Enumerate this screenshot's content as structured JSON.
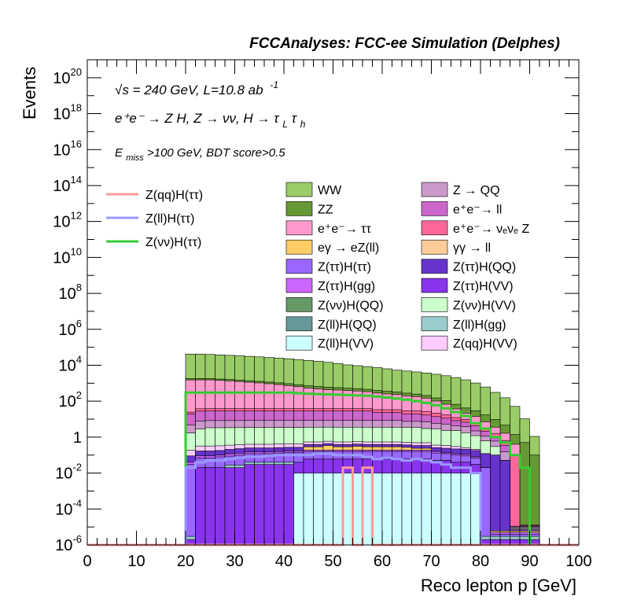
{
  "header": {
    "title": "FCCAnalyses: FCC-ee Simulation (Delphes)"
  },
  "annotations": {
    "line1": "√s = 240 GeV, L=10.8 ab",
    "line1_sup": "-1",
    "line2": "e⁺e⁻ → Z H, Z → νν, H → τ",
    "line2_sub1": "L",
    "line2_mid": "τ",
    "line2_sub2": "h",
    "line3_prefix": "E",
    "line3_sub": "miss",
    "line3_rest": ">100 GeV, BDT score>0.5"
  },
  "chart_data": {
    "type": "area",
    "stacked": true,
    "xlabel": "Reco lepton p [GeV]",
    "ylabel": "Events",
    "xlim": [
      0,
      100
    ],
    "ylim": [
      1e-06,
      1e+21
    ],
    "log_y": true,
    "grid": false,
    "x_ticks": [
      "0",
      "10",
      "20",
      "30",
      "40",
      "50",
      "60",
      "70",
      "80",
      "90",
      "100"
    ],
    "y_ticks": [
      {
        "base": "10",
        "exp": "20"
      },
      {
        "base": "10",
        "exp": "18"
      },
      {
        "base": "10",
        "exp": "16"
      },
      {
        "base": "10",
        "exp": "14"
      },
      {
        "base": "10",
        "exp": "12"
      },
      {
        "base": "10",
        "exp": "10"
      },
      {
        "base": "10",
        "exp": "8"
      },
      {
        "base": "10",
        "exp": "6"
      },
      {
        "base": "10",
        "exp": "4"
      },
      {
        "base": "10",
        "exp": "2"
      },
      {
        "base": "1",
        "exp": ""
      },
      {
        "base": "10",
        "exp": "-2"
      },
      {
        "base": "10",
        "exp": "-4"
      },
      {
        "base": "10",
        "exp": "-6"
      }
    ],
    "bin_width": 2,
    "stack_bins_x": [
      20,
      22,
      24,
      26,
      28,
      30,
      32,
      34,
      36,
      38,
      40,
      42,
      44,
      46,
      48,
      50,
      52,
      54,
      56,
      58,
      60,
      62,
      64,
      66,
      68,
      70,
      72,
      74,
      76,
      78,
      80,
      82,
      84,
      86,
      88,
      90
    ],
    "stack_layers": [
      {
        "name": "Z(ll)H(VV)",
        "color": "#ccffff",
        "values": [
          1e-06,
          1e-06,
          1e-06,
          1e-06,
          1e-06,
          1e-06,
          1e-06,
          1e-06,
          1e-06,
          1e-06,
          1e-06,
          0.01,
          0.01,
          0.01,
          0.01,
          0.01,
          0.01,
          0.01,
          0.01,
          0.01,
          0.01,
          0.01,
          0.01,
          0.01,
          0.01,
          0.01,
          0.01,
          0.01,
          0.01,
          0.01,
          1e-06,
          1e-06,
          1e-06,
          1e-06,
          1e-06,
          1e-06
        ]
      },
      {
        "name": "Z(ττ)H(VV)",
        "color": "#8833ee",
        "values": [
          1e-06,
          0.02,
          0.02,
          0.02,
          0.02,
          0.02,
          0.03,
          0.03,
          0.03,
          0.03,
          0.03,
          0.03,
          0.05,
          0.05,
          0.05,
          0.05,
          0.05,
          0.05,
          0.05,
          0.05,
          0.05,
          0.05,
          0.05,
          0.05,
          0.05,
          0.04,
          0.04,
          0.03,
          0.03,
          0.02,
          1e-06,
          1e-06,
          1e-06,
          1e-06,
          1e-06,
          1e-06
        ]
      },
      {
        "name": "Z(ll)H(gg)",
        "color": "#99cccc",
        "values": [
          1e-06,
          1e-06,
          1e-06,
          1e-06,
          0.008,
          0.008,
          0.01,
          0.01,
          0.01,
          0.01,
          0.01,
          1e-06,
          1e-06,
          1e-06,
          1e-06,
          1e-06,
          1e-06,
          1e-06,
          1e-06,
          1e-06,
          1e-06,
          1e-06,
          1e-06,
          1e-06,
          1e-06,
          1e-06,
          1e-06,
          1e-06,
          1e-06,
          1e-06,
          1e-06,
          1e-06,
          1e-06,
          1e-06,
          1e-06,
          1e-06
        ]
      },
      {
        "name": "Z(ττ)H(ττ)",
        "color": "#9966ff",
        "values": [
          0.03,
          0.05,
          0.05,
          0.06,
          0.06,
          0.07,
          0.08,
          0.08,
          0.08,
          0.09,
          0.1,
          0.1,
          0.1,
          0.1,
          0.1,
          0.1,
          0.1,
          0.1,
          0.1,
          0.1,
          0.1,
          0.1,
          0.1,
          0.1,
          0.1,
          0.08,
          0.07,
          0.06,
          0.05,
          0.04,
          0.02,
          1e-06,
          1e-06,
          1e-06,
          1e-06,
          1e-06
        ]
      },
      {
        "name": "Z(ττ)H(gg)",
        "color": "#cc66ff",
        "values": [
          0.01,
          0.02,
          0.02,
          0.02,
          0.03,
          0.03,
          0.03,
          0.03,
          0.03,
          0.03,
          0.03,
          0.03,
          0.03,
          0.03,
          0.03,
          0.03,
          0.03,
          0.03,
          0.03,
          0.03,
          0.03,
          0.03,
          0.03,
          0.03,
          0.03,
          0.03,
          0.02,
          0.02,
          0.02,
          0.01,
          1e-06,
          1e-06,
          1e-06,
          1e-06,
          1e-06,
          1e-06
        ]
      },
      {
        "name": "eγ → eZ(ll)",
        "color": "#ffcc66",
        "values": [
          1e-06,
          1e-06,
          1e-06,
          1e-06,
          1e-06,
          1e-06,
          1e-06,
          1e-06,
          1e-06,
          1e-06,
          1e-06,
          1e-06,
          0.1,
          0.1,
          0.15,
          0.1,
          0.1,
          0.12,
          0.1,
          0.1,
          0.1,
          0.1,
          0.08,
          0.05,
          0.05,
          1e-06,
          1e-06,
          1e-06,
          1e-06,
          1e-06,
          1e-06,
          1e-06,
          1e-06,
          1e-06,
          1e-06,
          1e-06
        ]
      },
      {
        "name": "Z(ττ)H(QQ)",
        "color": "#6633cc",
        "values": [
          0.05,
          0.08,
          0.08,
          0.08,
          0.09,
          0.1,
          0.1,
          0.1,
          0.1,
          0.1,
          0.1,
          0.1,
          0.1,
          0.1,
          0.1,
          0.1,
          0.1,
          0.1,
          0.1,
          0.1,
          0.1,
          0.1,
          0.1,
          0.1,
          0.1,
          0.1,
          0.1,
          0.1,
          0.1,
          0.1,
          0.1,
          0.1,
          0.05,
          1e-06,
          1e-06,
          1e-06
        ]
      },
      {
        "name": "Z(qq)H(VV)",
        "color": "#ffccff",
        "values": [
          0.1,
          0.15,
          0.15,
          0.15,
          0.15,
          0.15,
          0.15,
          0.15,
          0.15,
          0.15,
          0.15,
          0.15,
          0.15,
          0.15,
          0.15,
          0.15,
          0.15,
          0.15,
          0.15,
          0.15,
          0.15,
          0.15,
          0.15,
          0.15,
          0.15,
          0.1,
          0.1,
          0.08,
          0.05,
          0.03,
          1e-06,
          1e-06,
          1e-06,
          1e-06,
          1e-06,
          1e-06
        ]
      },
      {
        "name": "Z(νν)H(VV)",
        "color": "#ccffcc",
        "values": [
          1.5,
          2.5,
          3,
          3,
          3,
          3,
          3,
          3,
          3,
          3,
          3,
          3,
          3,
          3,
          3,
          3,
          3,
          3,
          3,
          3,
          3,
          3,
          3,
          3,
          2.5,
          2.5,
          2,
          2,
          1.5,
          1,
          0.5,
          0.2,
          1e-06,
          1e-06,
          1e-06,
          1e-06
        ]
      },
      {
        "name": "Z → QQ",
        "color": "#cc99cc",
        "values": [
          3,
          5,
          5,
          5,
          5,
          5,
          5,
          5,
          5,
          5,
          5,
          5,
          5,
          5,
          5,
          5,
          5,
          5,
          5,
          5,
          5,
          5,
          4,
          4,
          4,
          3,
          3,
          2,
          2,
          1,
          0.5,
          0.3,
          0.1,
          1e-06,
          1e-06,
          1e-06
        ]
      },
      {
        "name": "e⁺e⁻→ ll",
        "color": "#cc66cc",
        "values": [
          15,
          20,
          20,
          20,
          20,
          20,
          20,
          20,
          20,
          20,
          20,
          20,
          20,
          20,
          20,
          20,
          20,
          20,
          20,
          15,
          15,
          15,
          12,
          12,
          10,
          8,
          6,
          4,
          3,
          2,
          1,
          0.5,
          0.2,
          1e-06,
          1e-06,
          1e-06
        ]
      },
      {
        "name": "e⁺e⁻→ ν_eν_e Z",
        "color": "#ff6699",
        "values": [
          5,
          10,
          10,
          10,
          10,
          10,
          10,
          10,
          10,
          10,
          10,
          10,
          10,
          10,
          10,
          10,
          10,
          10,
          10,
          10,
          10,
          10,
          10,
          10,
          10,
          8,
          6,
          4,
          3,
          2,
          1,
          0.5,
          0.3,
          0.1,
          1e-06,
          1e-06
        ]
      },
      {
        "name": "e⁺e⁻→ ττ",
        "color": "#ff99cc",
        "values": [
          1500,
          1500,
          1500,
          1400,
          1300,
          1200,
          1100,
          1000,
          900,
          800,
          700,
          600,
          500,
          450,
          400,
          380,
          350,
          330,
          300,
          250,
          220,
          200,
          170,
          150,
          120,
          80,
          50,
          25,
          12,
          8,
          4,
          2,
          1,
          0.3,
          1e-06,
          1e-06
        ]
      },
      {
        "name": "ZZ",
        "color": "#669933",
        "values": [
          300,
          300,
          280,
          270,
          260,
          250,
          240,
          230,
          220,
          210,
          200,
          190,
          180,
          170,
          160,
          150,
          140,
          130,
          120,
          110,
          100,
          90,
          80,
          70,
          60,
          50,
          40,
          30,
          20,
          15,
          10,
          6,
          3,
          1,
          0.5,
          0.1
        ]
      },
      {
        "name": "WW",
        "color": "#99cc66",
        "values": [
          40000,
          40000,
          38000,
          36000,
          34000,
          32000,
          30000,
          28000,
          26000,
          24000,
          22000,
          20000,
          18000,
          16000,
          14000,
          12000,
          10000,
          9000,
          8000,
          7000,
          6000,
          5000,
          4500,
          4000,
          3500,
          3000,
          2500,
          2000,
          1500,
          1000,
          600,
          300,
          150,
          50,
          10,
          1
        ]
      }
    ],
    "overlay_bins_x": [
      20,
      22,
      24,
      26,
      28,
      30,
      32,
      34,
      36,
      38,
      40,
      42,
      44,
      46,
      48,
      50,
      52,
      54,
      56,
      58,
      60,
      62,
      64,
      66,
      68,
      70,
      72,
      74,
      76,
      78,
      80,
      82,
      84,
      86,
      88,
      90
    ],
    "overlay_lines": [
      {
        "name": "Z(νν)H(ττ)",
        "color": "#33cc33",
        "values": [
          300,
          300,
          300,
          300,
          300,
          300,
          300,
          300,
          300,
          300,
          300,
          280,
          260,
          250,
          240,
          230,
          220,
          210,
          200,
          180,
          160,
          140,
          120,
          100,
          80,
          60,
          40,
          25,
          15,
          6,
          3,
          1,
          0.5,
          0.1,
          0.02,
          1e-06
        ]
      },
      {
        "name": "Z(ll)H(ττ)",
        "color": "#9999ff",
        "values": [
          0.02,
          0.04,
          0.05,
          0.05,
          0.06,
          0.07,
          0.08,
          0.08,
          0.09,
          0.1,
          0.1,
          0.1,
          0.1,
          0.12,
          0.12,
          0.1,
          0.1,
          0.1,
          0.08,
          0.06,
          0.07,
          0.06,
          0.05,
          0.06,
          0.05,
          0.04,
          0.03,
          0.02,
          0.02,
          0.01,
          1e-06,
          1e-06,
          1e-06,
          1e-06,
          1e-06,
          1e-06
        ]
      },
      {
        "name": "Z(qq)H(ττ)",
        "color": "#ff9999",
        "values": [
          1e-06,
          1e-06,
          1e-06,
          1e-06,
          1e-06,
          1e-06,
          1e-06,
          1e-06,
          1e-06,
          1e-06,
          1e-06,
          1e-06,
          1e-06,
          1e-06,
          1e-06,
          1e-06,
          0.02,
          1e-06,
          0.02,
          1e-06,
          1e-06,
          1e-06,
          1e-06,
          1e-06,
          1e-06,
          1e-06,
          1e-06,
          1e-06,
          1e-06,
          1e-06,
          1e-06,
          1e-06,
          1e-06,
          1e-06,
          1e-06,
          1e-06
        ]
      }
    ],
    "legend_lines": [
      {
        "label": "Z(qq)H(ττ)",
        "color": "#ff9999"
      },
      {
        "label": "Z(ll)H(ττ)",
        "color": "#9999ff"
      },
      {
        "label": "Z(νν)H(ττ)",
        "color": "#33cc33"
      }
    ],
    "legend_boxes_col1": [
      {
        "label": "WW",
        "color": "#99cc66"
      },
      {
        "label": "ZZ",
        "color": "#669933"
      },
      {
        "label": "e⁺e⁻→ ττ",
        "color": "#ff99cc"
      },
      {
        "label": "eγ → eZ(ll)",
        "color": "#ffcc66"
      },
      {
        "label": "Z(ττ)H(ττ)",
        "color": "#9966ff"
      },
      {
        "label": "Z(ττ)H(gg)",
        "color": "#cc66ff"
      },
      {
        "label": "Z(νν)H(QQ)",
        "color": "#669966"
      },
      {
        "label": "Z(ll)H(QQ)",
        "color": "#669999"
      },
      {
        "label": "Z(ll)H(VV)",
        "color": "#ccffff"
      }
    ],
    "legend_boxes_col2": [
      {
        "label": "Z → QQ",
        "color": "#cc99cc"
      },
      {
        "label": "e⁺e⁻→ ll",
        "color": "#cc66cc"
      },
      {
        "label": "e⁺e⁻→ νₑνₑ Z",
        "color": "#ff6699"
      },
      {
        "label": "γγ → ll",
        "color": "#ffcc99"
      },
      {
        "label": "Z(ττ)H(QQ)",
        "color": "#6633cc"
      },
      {
        "label": "Z(ττ)H(VV)",
        "color": "#8833ee"
      },
      {
        "label": "Z(νν)H(VV)",
        "color": "#ccffcc"
      },
      {
        "label": "Z(ll)H(gg)",
        "color": "#99cccc"
      },
      {
        "label": "Z(qq)H(VV)",
        "color": "#ffccff"
      }
    ]
  }
}
